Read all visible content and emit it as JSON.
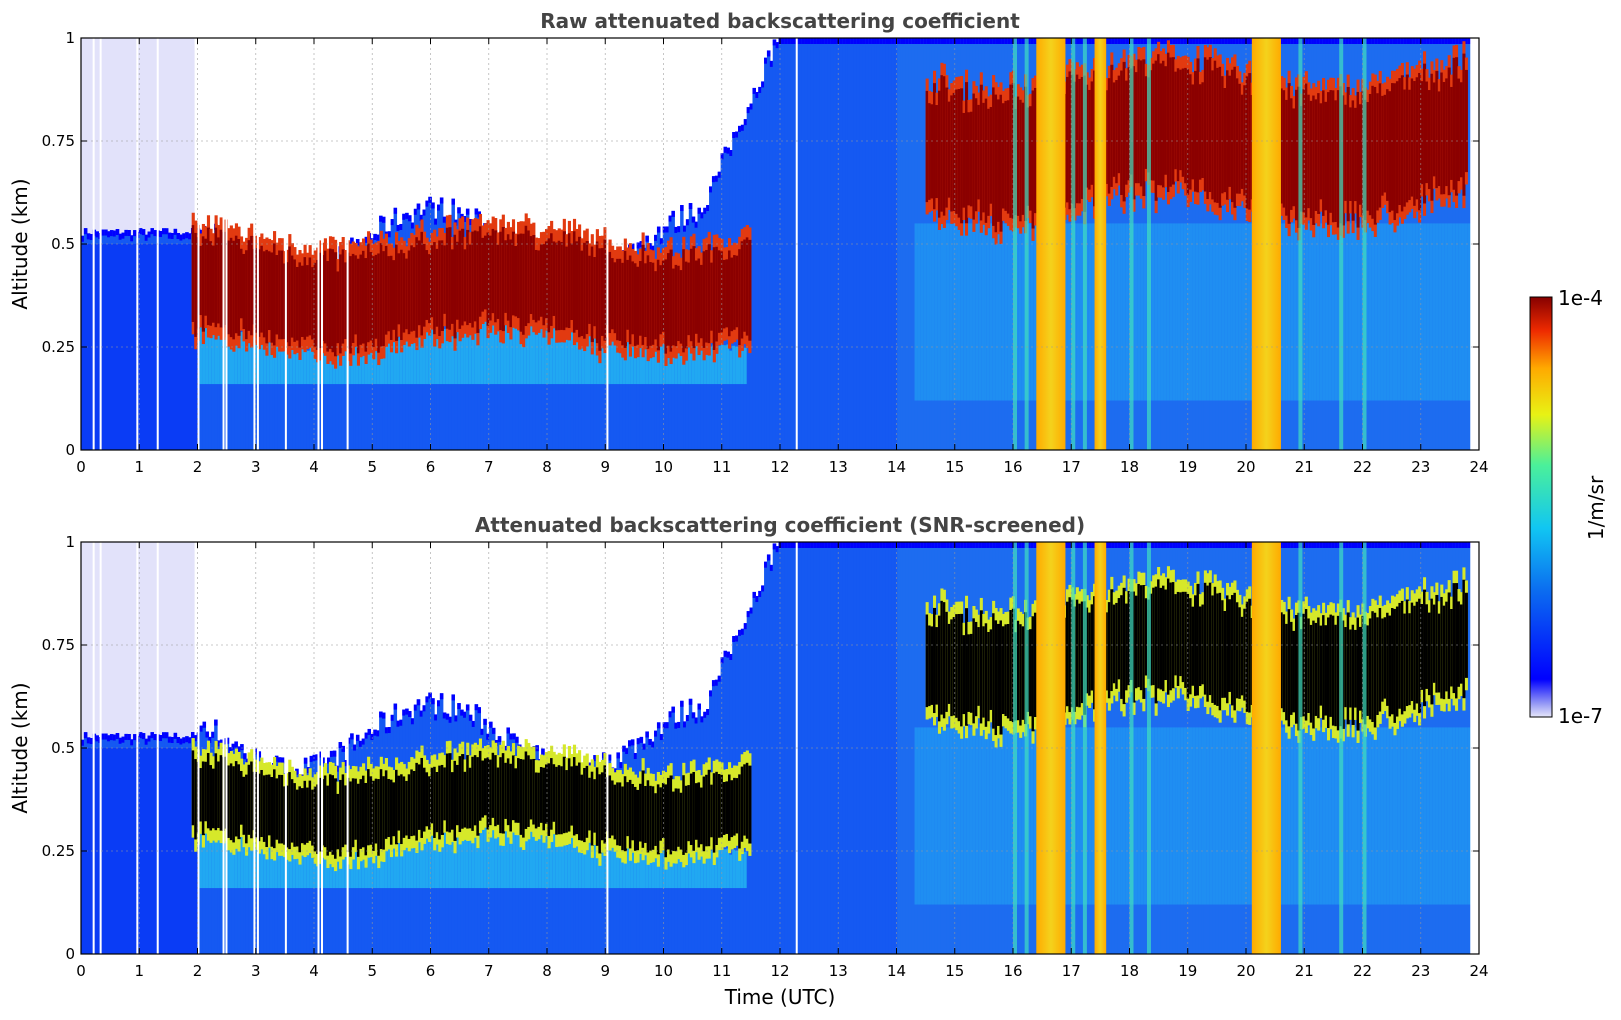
{
  "chart_data": [
    {
      "type": "heatmap",
      "title": "Raw attenuated backscattering coefficient",
      "xlabel": "",
      "ylabel": "Altitude (km)",
      "xlim": [
        0,
        24
      ],
      "ylim": [
        0,
        1
      ],
      "xticks": [
        "0",
        "1",
        "2",
        "3",
        "4",
        "5",
        "6",
        "7",
        "8",
        "9",
        "10",
        "11",
        "12",
        "13",
        "14",
        "15",
        "16",
        "17",
        "18",
        "19",
        "20",
        "21",
        "22",
        "23",
        "24"
      ],
      "yticks": [
        "0",
        "0.25",
        "0.5",
        "0.75",
        "1"
      ],
      "grid": true,
      "colorbar_label": "1/m/sr",
      "colorbar_range": [
        "1e-7",
        "1e-4"
      ],
      "colorscale": "log, jet",
      "features": {
        "cloud_layer_morning": {
          "time_range": [
            1.9,
            11.5
          ],
          "altitude_range": [
            0.28,
            0.5
          ],
          "level": "1e-4"
        },
        "cloud_layer_afternoon": {
          "time_range": [
            14.5,
            23.8
          ],
          "altitude_range": [
            0.6,
            0.9
          ],
          "level": "1e-4"
        },
        "rain_columns_utc": [
          [
            16.4,
            16.9
          ],
          [
            17.4,
            17.6
          ],
          [
            20.1,
            20.6
          ]
        ]
      }
    },
    {
      "type": "heatmap",
      "title": "Attenuated backscattering coefficient (SNR-screened)",
      "xlabel": "Time (UTC)",
      "ylabel": "Altitude (km)",
      "xlim": [
        0,
        24
      ],
      "ylim": [
        0,
        1
      ],
      "xticks": [
        "0",
        "1",
        "2",
        "3",
        "4",
        "5",
        "6",
        "7",
        "8",
        "9",
        "10",
        "11",
        "12",
        "13",
        "14",
        "15",
        "16",
        "17",
        "18",
        "19",
        "20",
        "21",
        "22",
        "23",
        "24"
      ],
      "yticks": [
        "0",
        "0.25",
        "0.5",
        "0.75",
        "1"
      ],
      "grid": true,
      "colorbar_label": "1/m/sr",
      "colorbar_range": [
        "1e-7",
        "1e-4"
      ],
      "colorscale": "log, jet",
      "features": {
        "screened_cloud_morning": {
          "time_range": [
            1.9,
            11.5
          ],
          "altitude_range": [
            0.28,
            0.45
          ],
          "screened": true
        },
        "screened_cloud_afternoon": {
          "time_range": [
            14.5,
            23.8
          ],
          "altitude_range": [
            0.6,
            0.85
          ],
          "screened": true
        },
        "rain_columns_utc": [
          [
            16.4,
            16.9
          ],
          [
            17.4,
            17.6
          ],
          [
            20.1,
            20.6
          ]
        ]
      }
    }
  ],
  "colorbar": {
    "top_label": "1e-4",
    "bottom_label": "1e-7",
    "unit": "1/m/sr"
  }
}
